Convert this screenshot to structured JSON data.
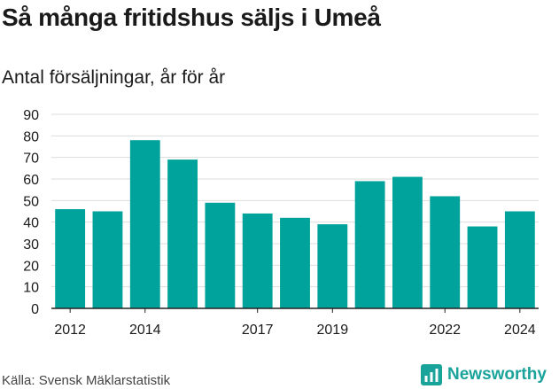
{
  "title": "Så många fritidshus säljs i Umeå",
  "subtitle": "Antal försäljningar, år för år",
  "footer": {
    "source": "Källa: Svensk Mäklarstatistik",
    "brand": "Newsworthy",
    "brand_color": "#1aa39a"
  },
  "colors": {
    "bar": "#00a39b",
    "grid": "#dddddd",
    "axis": "#222222",
    "text": "#1a1a1a"
  },
  "chart_data": {
    "type": "bar",
    "categories": [
      "2012",
      "2013",
      "2014",
      "2015",
      "2016",
      "2017",
      "2018",
      "2019",
      "2020",
      "2021",
      "2022",
      "2023",
      "2024"
    ],
    "values": [
      46,
      45,
      78,
      69,
      49,
      44,
      42,
      39,
      59,
      61,
      52,
      38,
      45
    ],
    "x_tick_labels": [
      "2012",
      "2014",
      "2017",
      "2019",
      "2022",
      "2024"
    ],
    "y_ticks": [
      0,
      10,
      20,
      30,
      40,
      50,
      60,
      70,
      80,
      90
    ],
    "ylim": [
      0,
      90
    ],
    "grid": true,
    "xlabel": "",
    "ylabel": ""
  }
}
